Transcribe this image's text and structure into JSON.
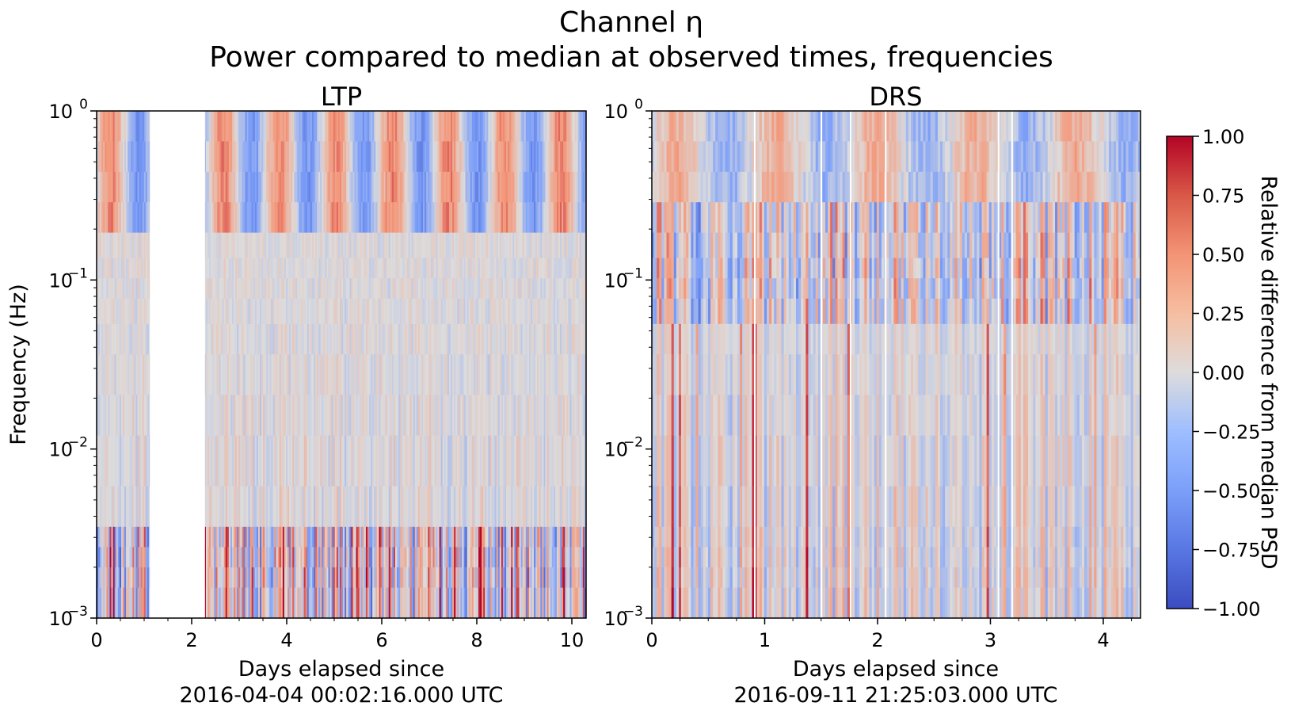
{
  "figure": {
    "title": "Channel η",
    "subtitle": "Power compared to median at observed times, frequencies"
  },
  "chart_data": [
    {
      "type": "heatmap",
      "title": "LTP",
      "xlabel": "Days elapsed since",
      "xlabel_line2": "2016-04-04 00:02:16.000 UTC",
      "ylabel": "Frequency (Hz)",
      "xlim": [
        0,
        10.3
      ],
      "ylim": [
        0.001,
        1
      ],
      "y_scale": "log",
      "x_ticks": [
        0,
        2,
        4,
        6,
        8,
        10
      ],
      "x_tick_labels": [
        "0",
        "2",
        "4",
        "6",
        "8",
        "10"
      ],
      "y_tick_labels": [
        {
          "base": "10",
          "exp": "0"
        },
        {
          "base": "10",
          "exp": "−1"
        },
        {
          "base": "10",
          "exp": "−2"
        },
        {
          "base": "10",
          "exp": "−3"
        }
      ],
      "gaps": [
        [
          1.12,
          2.28
        ]
      ],
      "value_range": [
        -1,
        1
      ]
    },
    {
      "type": "heatmap",
      "title": "DRS",
      "xlabel": "Days elapsed since",
      "xlabel_line2": "2016-09-11 21:25:03.000 UTC",
      "ylabel": "",
      "xlim": [
        0,
        4.33
      ],
      "ylim": [
        0.001,
        1
      ],
      "y_scale": "log",
      "x_ticks": [
        0,
        1,
        2,
        3,
        4
      ],
      "x_tick_labels": [
        "0",
        "1",
        "2",
        "3",
        "4"
      ],
      "y_tick_labels": [
        {
          "base": "10",
          "exp": "0"
        },
        {
          "base": "10",
          "exp": "−1"
        },
        {
          "base": "10",
          "exp": "−2"
        },
        {
          "base": "10",
          "exp": "−3"
        }
      ],
      "gaps": [
        [
          0.905,
          0.915
        ],
        [
          1.495,
          1.505
        ],
        [
          1.755,
          1.765
        ],
        [
          2.065,
          2.075
        ],
        [
          3.065,
          3.075
        ],
        [
          3.185,
          3.195
        ]
      ],
      "value_range": [
        -1,
        1
      ]
    }
  ],
  "colorbar": {
    "label": "Relative difference from median PSD",
    "colormap": "coolwarm",
    "range": [
      -1,
      1
    ],
    "ticks": [
      1.0,
      0.75,
      0.5,
      0.25,
      0.0,
      -0.25,
      -0.5,
      -0.75,
      -1.0
    ],
    "tick_labels": [
      "1.00",
      "0.75",
      "0.50",
      "0.25",
      "0.00",
      "−0.25",
      "−0.50",
      "−0.75",
      "−1.00"
    ]
  },
  "colors": {
    "cold": "#3b4cc0",
    "neutral": "#dddddd",
    "hot": "#b40426"
  }
}
